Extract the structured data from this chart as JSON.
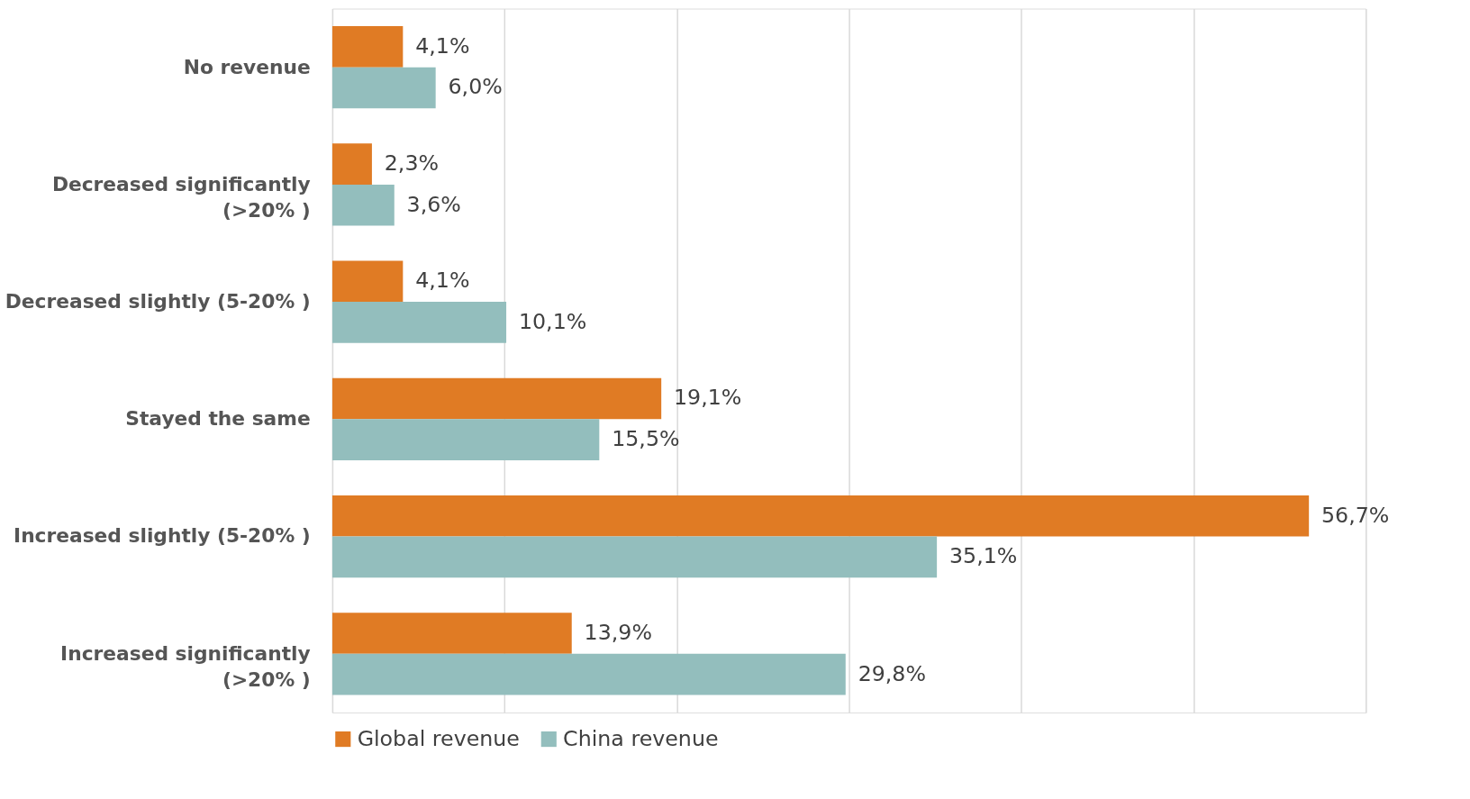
{
  "chart_data": {
    "type": "bar",
    "orientation": "horizontal",
    "categories": [
      "No revenue",
      "Decreased significantly (>20% )",
      "Decreased slightly (5-20% )",
      "Stayed the same",
      "Increased slightly (5-20% )",
      "Increased significantly (>20% )"
    ],
    "series": [
      {
        "name": "Global revenue",
        "color": "#e07b24",
        "values": [
          4.1,
          2.3,
          4.1,
          19.1,
          56.7,
          13.9
        ],
        "value_labels": [
          "4,1%",
          "2,3%",
          "4,1%",
          "19,1%",
          "56,7%",
          "13,9%"
        ]
      },
      {
        "name": "China revenue",
        "color": "#93bebd",
        "values": [
          6.0,
          3.6,
          10.1,
          15.5,
          35.1,
          29.8
        ],
        "value_labels": [
          "6,0%",
          "3,6%",
          "10,1%",
          "15,5%",
          "35,1%",
          "29,8%"
        ]
      }
    ],
    "xlim": [
      0,
      60
    ],
    "xticks": [
      {
        "value": 0,
        "label": null
      },
      {
        "value": 10,
        "label": null
      },
      {
        "value": 20,
        "label": null
      },
      {
        "value": 30,
        "label": null
      },
      {
        "value": 40,
        "label": null
      },
      {
        "value": 50,
        "label": null
      },
      {
        "value": 60,
        "label": null
      }
    ],
    "tick_labels": "y",
    "grid": "x",
    "legend": "bottom"
  }
}
